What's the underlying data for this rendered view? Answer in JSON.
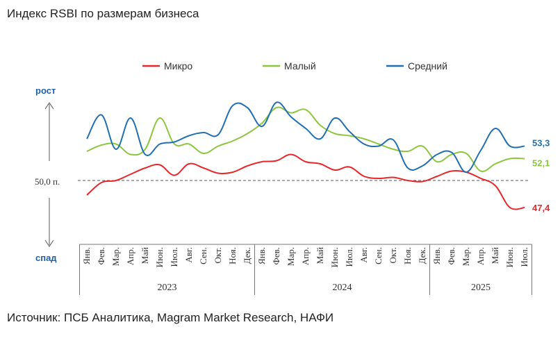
{
  "title": "Индекс RSBI по размерам бизнеса",
  "source": "Источник: ПСБ Аналитика, Magram Market Research, НАФИ",
  "colors": {
    "micro": "#e8262a",
    "small": "#8cc63e",
    "medium": "#1f6fb4",
    "axis_word": "#1f5fa6"
  },
  "chart_data": {
    "type": "line",
    "title": "Индекс RSBI по размерам бизнеса",
    "ylabel_top": "рост",
    "ylabel_bottom": "спад",
    "reference_line": {
      "value": 50.0,
      "label": "50,0 п."
    },
    "ylim": [
      44,
      60
    ],
    "categories": [
      "Янв.",
      "Фев.",
      "Мар.",
      "Апр.",
      "Май",
      "Июн.",
      "Июл.",
      "Авг.",
      "Сен.",
      "Окт.",
      "Ноя.",
      "Дек.",
      "Янв.",
      "Фев.",
      "Мар.",
      "Апр.",
      "Май",
      "Июн.",
      "Июл.",
      "Авг.",
      "Сен.",
      "Окт.",
      "Ноя.",
      "Дек.",
      "Янв.",
      "Фев.",
      "Мар.",
      "Апр.",
      "Май",
      "Июн.",
      "Июл."
    ],
    "years": [
      {
        "label": "2023",
        "start": 0,
        "end": 11
      },
      {
        "label": "2024",
        "start": 12,
        "end": 23
      },
      {
        "label": "2025",
        "start": 24,
        "end": 30
      }
    ],
    "series": [
      {
        "name": "Микро",
        "key": "micro",
        "values": [
          48.6,
          49.8,
          50.0,
          50.6,
          51.2,
          51.5,
          50.5,
          51.6,
          51.2,
          50.7,
          50.8,
          51.4,
          51.8,
          51.9,
          52.5,
          51.8,
          51.6,
          51.0,
          51.3,
          50.4,
          50.2,
          50.3,
          50.0,
          49.9,
          50.4,
          50.9,
          50.8,
          50.2,
          49.5,
          47.4,
          47.4
        ],
        "end_label": "47,4"
      },
      {
        "name": "Малый",
        "key": "small",
        "values": [
          52.8,
          53.4,
          53.5,
          52.5,
          53.0,
          56.0,
          53.5,
          53.5,
          52.6,
          53.3,
          53.8,
          54.5,
          55.5,
          57.0,
          56.5,
          56.8,
          55.3,
          54.5,
          54.3,
          54.0,
          53.5,
          53.0,
          52.8,
          53.3,
          51.8,
          52.5,
          52.6,
          50.9,
          51.6,
          52.1,
          52.1
        ],
        "end_label": "52,1"
      },
      {
        "name": "Средний",
        "key": "medium",
        "values": [
          54.0,
          56.3,
          53.0,
          56.0,
          52.5,
          53.5,
          53.7,
          54.3,
          54.6,
          54.4,
          57.2,
          57.0,
          55.2,
          57.5,
          56.1,
          55.0,
          54.0,
          56.0,
          54.7,
          53.5,
          53.3,
          53.9,
          51.2,
          51.4,
          52.5,
          52.7,
          50.8,
          52.9,
          55.0,
          53.3,
          53.3
        ],
        "end_label": "53,3"
      }
    ]
  }
}
